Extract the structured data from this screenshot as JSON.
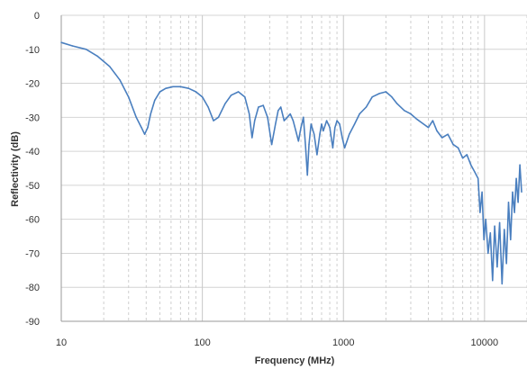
{
  "chart_data": {
    "type": "line",
    "xlabel": "Frequency (MHz)",
    "ylabel": "Reflectivity (dB)",
    "x_scale": "log",
    "xlim": [
      10,
      20000
    ],
    "ylim": [
      -90,
      0
    ],
    "x_ticks": [
      "10",
      "100",
      "1000",
      "10000"
    ],
    "y_ticks": [
      "0",
      "-10",
      "-20",
      "-30",
      "-40",
      "-50",
      "-60",
      "-70",
      "-80",
      "-90"
    ],
    "grid": true,
    "line_color": "#4a7fbf",
    "series": [
      {
        "x": [
          10,
          12,
          15,
          18,
          22,
          26,
          30,
          34,
          37,
          39,
          41,
          43,
          46,
          50,
          55,
          62,
          70,
          80,
          90,
          100,
          110,
          120,
          130,
          145,
          160,
          180,
          200,
          215,
          225,
          235,
          250,
          270,
          290,
          310,
          330,
          345,
          360,
          380,
          400,
          420,
          440,
          460,
          480,
          500,
          520,
          540,
          555,
          570,
          590,
          620,
          650,
          680,
          700,
          720,
          760,
          800,
          840,
          870,
          900,
          940,
          980,
          1020,
          1060,
          1100,
          1200,
          1300,
          1450,
          1600,
          1800,
          2000,
          2200,
          2400,
          2700,
          3000,
          3300,
          3700,
          4000,
          4300,
          4600,
          5000,
          5500,
          6000,
          6500,
          7000,
          7500,
          8000,
          8500,
          9000,
          9300,
          9600,
          9900,
          10200,
          10600,
          11000,
          11400,
          11800,
          12300,
          12800,
          13300,
          13800,
          14300,
          14800,
          15300,
          15800,
          16300,
          16800,
          17300,
          17800,
          18300
        ],
        "y": [
          -8,
          -9,
          -10,
          -12,
          -15,
          -19,
          -24,
          -30,
          -33,
          -35,
          -33,
          -29,
          -25,
          -22.5,
          -21.5,
          -21,
          -21,
          -21.5,
          -22.5,
          -24,
          -27,
          -31,
          -30,
          -26,
          -23.5,
          -22.5,
          -24,
          -29,
          -36,
          -31,
          -27,
          -26.5,
          -30,
          -38,
          -32,
          -28,
          -27,
          -31,
          -30,
          -29,
          -31,
          -34,
          -37,
          -33,
          -30,
          -39,
          -47,
          -38,
          -32,
          -35,
          -41,
          -35,
          -32,
          -34,
          -31,
          -33,
          -39,
          -33,
          -31,
          -32,
          -36,
          -39,
          -37,
          -35,
          -32,
          -29,
          -27,
          -24,
          -23,
          -22.5,
          -24,
          -26,
          -28,
          -29,
          -30.5,
          -32,
          -33,
          -31,
          -34,
          -36,
          -35,
          -38,
          -39,
          -42,
          -41,
          -44,
          -46,
          -48,
          -58,
          -52,
          -66,
          -60,
          -70,
          -64,
          -78,
          -62,
          -74,
          -61,
          -79,
          -63,
          -73,
          -55,
          -66,
          -52,
          -58,
          -48,
          -55,
          -44,
          -52
        ]
      }
    ]
  }
}
